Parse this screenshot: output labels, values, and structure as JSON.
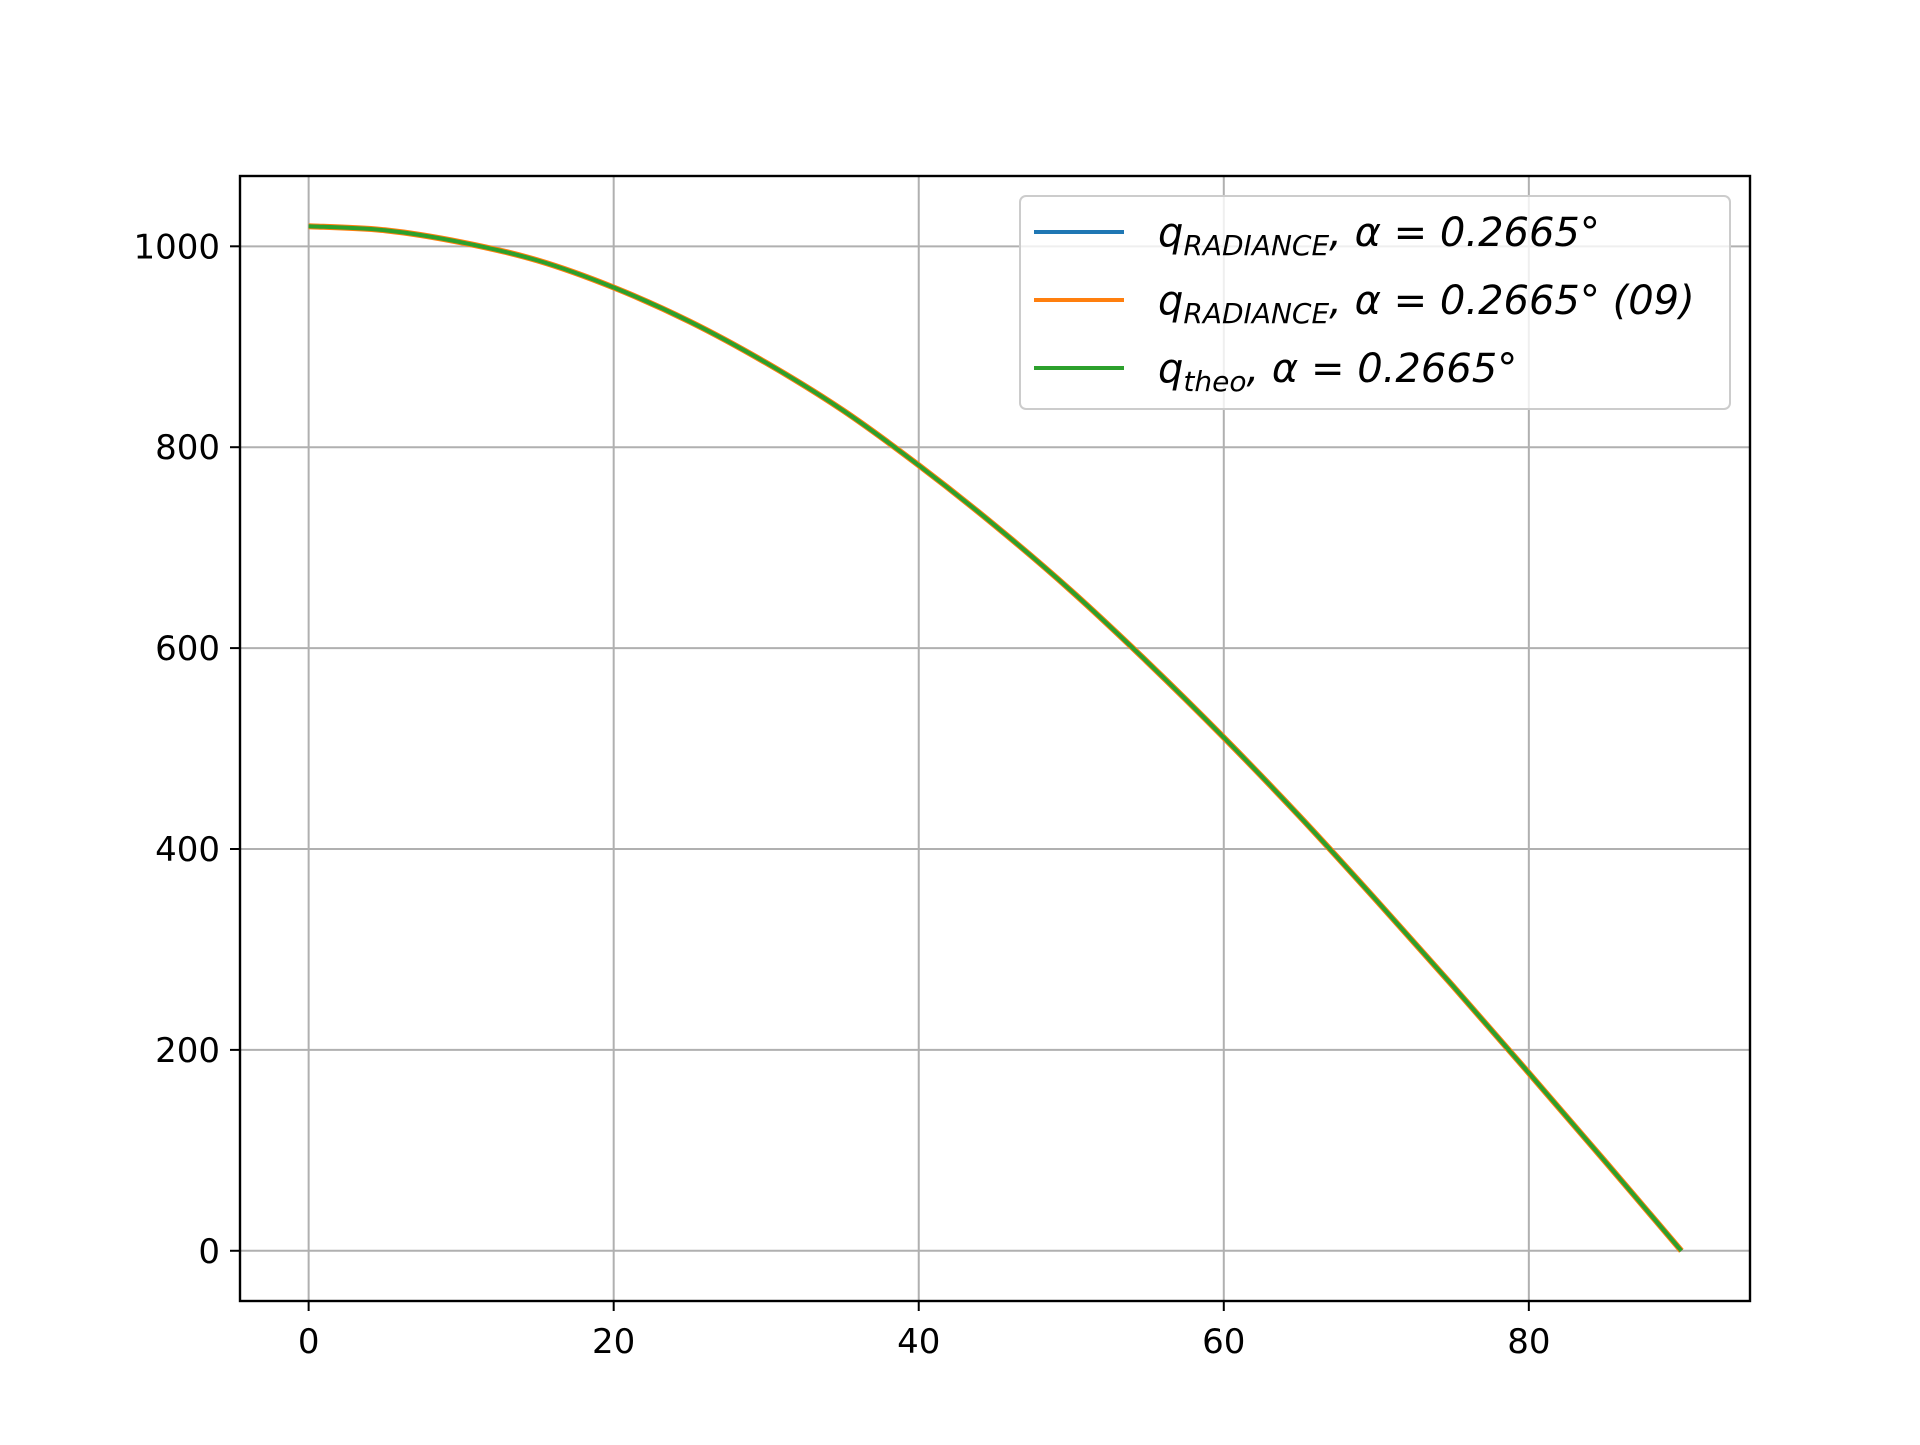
{
  "chart_data": {
    "type": "line",
    "title": "",
    "xlabel": "",
    "ylabel": "",
    "xlim": [
      -4.5,
      94.5
    ],
    "ylim": [
      -50,
      1070
    ],
    "xticks": [
      0,
      20,
      40,
      60,
      80
    ],
    "yticks": [
      0,
      200,
      400,
      600,
      800,
      1000
    ],
    "xtick_labels": [
      "0",
      "20",
      "40",
      "60",
      "80"
    ],
    "ytick_labels": [
      "0",
      "200",
      "400",
      "600",
      "800",
      "1000"
    ],
    "grid": true,
    "legend_position": "top-right",
    "x": [
      0,
      5,
      10,
      15,
      20,
      25,
      30,
      35,
      40,
      45,
      50,
      55,
      60,
      65,
      70,
      75,
      80,
      85,
      90
    ],
    "series": [
      {
        "name": "q_RADIANCE, α = 0.2665°",
        "legend": {
          "base": "q",
          "sub": "RADIANCE",
          "rest": ", α = 0.2665°"
        },
        "color": "#1f77b4",
        "values": [
          1020,
          1016,
          1004,
          986,
          959,
          925,
          884,
          837,
          782,
          722,
          657,
          586,
          511,
          432,
          349,
          264,
          177,
          89,
          0
        ]
      },
      {
        "name": "q_RADIANCE, α = 0.2665° (09)",
        "legend": {
          "base": "q",
          "sub": "RADIANCE",
          "rest": ", α = 0.2665°  (09)"
        },
        "color": "#ff7f0e",
        "values": [
          1020,
          1016,
          1004,
          986,
          959,
          925,
          884,
          837,
          782,
          722,
          657,
          586,
          511,
          432,
          349,
          264,
          177,
          89,
          0
        ]
      },
      {
        "name": "q_theo, α = 0.2665°",
        "legend": {
          "base": "q",
          "sub": "theo",
          "rest": ", α = 0.2665°"
        },
        "color": "#2ca02c",
        "values": [
          1020,
          1016,
          1004,
          986,
          959,
          925,
          884,
          837,
          782,
          722,
          657,
          586,
          511,
          432,
          349,
          264,
          177,
          89,
          0
        ]
      }
    ]
  }
}
